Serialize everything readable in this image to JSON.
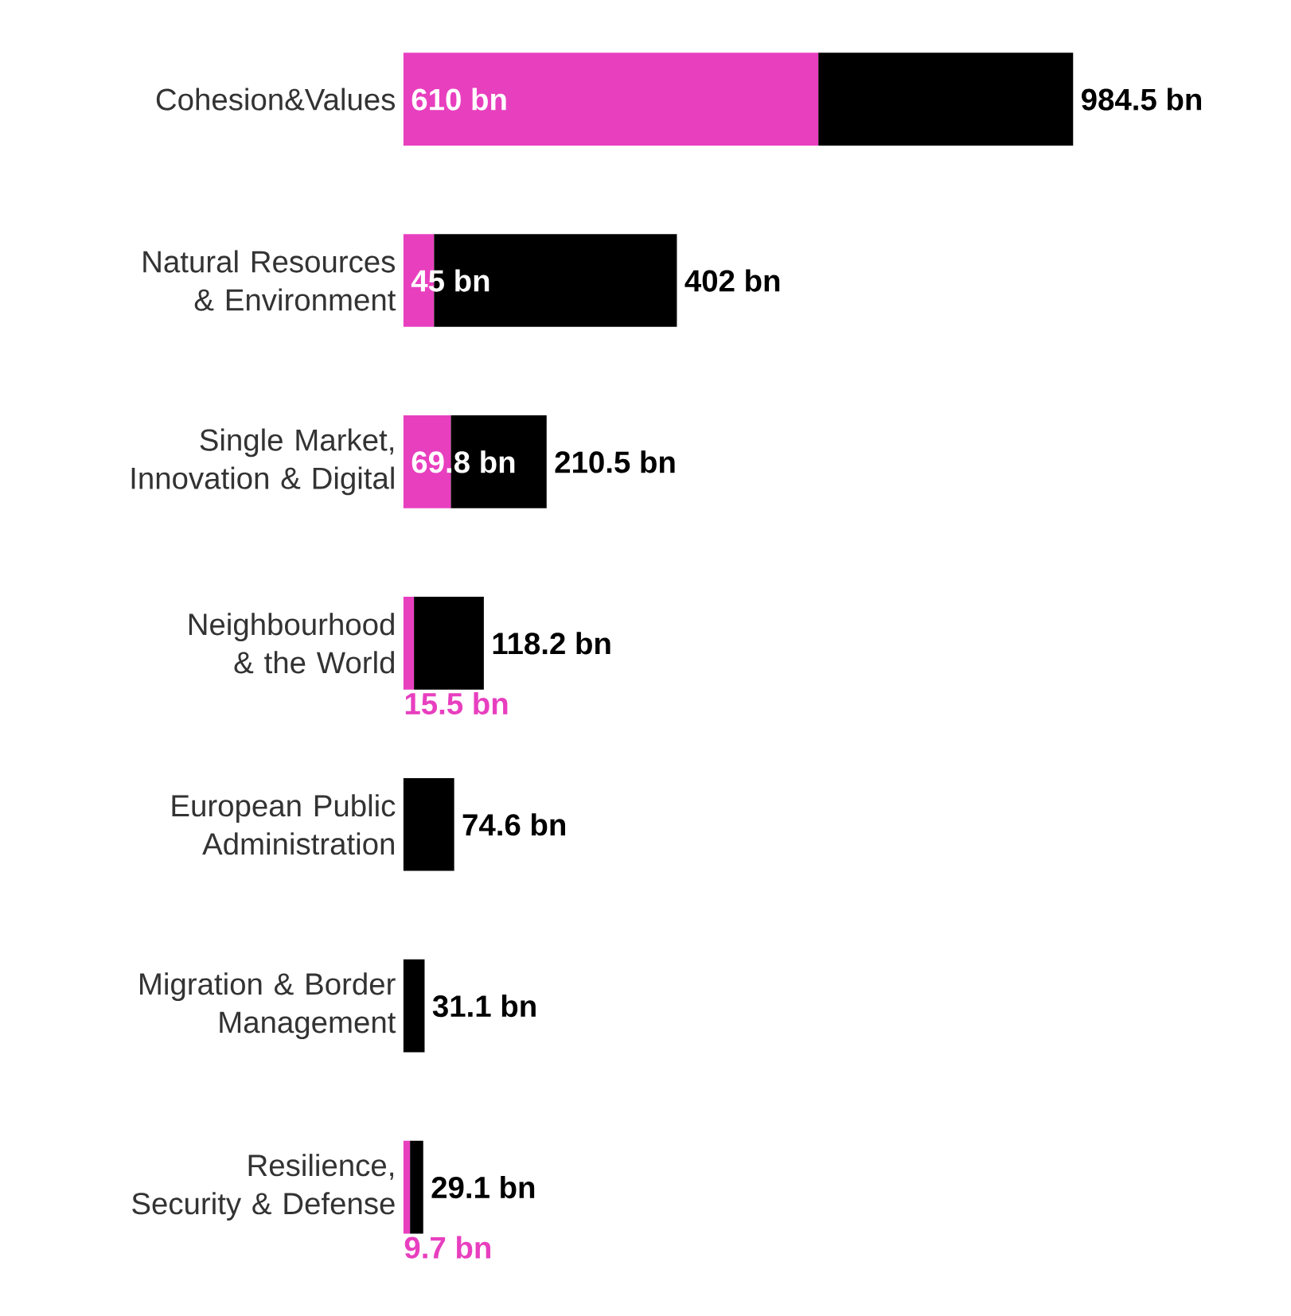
{
  "chart_data": {
    "type": "bar",
    "orientation": "horizontal",
    "stacked": true,
    "categories": [
      "Cohesion&Values",
      "Natural Resources & Environment",
      "Single Market, Innovation & Digital",
      "Neighbourhood & the World",
      "European Public Administration",
      "Migration & Border Management",
      "Resilience, Security & Defense"
    ],
    "series": [
      {
        "color": "#e83fbf",
        "values": [
          610,
          45,
          69.8,
          15.5,
          null,
          null,
          9.7
        ],
        "value_labels": [
          "610 bn",
          "45 bn",
          "69.8 bn",
          "15.5 bn",
          null,
          null,
          "9.7 bn"
        ]
      },
      {
        "color": "#000000",
        "values": [
          374.5,
          357,
          140.7,
          102.7,
          74.6,
          31.1,
          19.4
        ]
      }
    ],
    "totals": [
      "984.5 bn",
      "402 bn",
      "210.5 bn",
      "118.2 bn",
      "74.6 bn",
      "31.1 bn",
      "29.1 bn"
    ]
  }
}
